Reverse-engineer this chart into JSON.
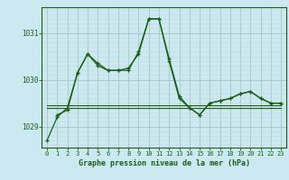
{
  "title": "Graphe pression niveau de la mer (hPa)",
  "background_color": "#cce8f0",
  "grid_color_major": "#aacccc",
  "grid_color_minor": "#c5dde0",
  "line_color": "#1a5e1a",
  "xlim": [
    -0.5,
    23.5
  ],
  "ylim": [
    1028.55,
    1031.55
  ],
  "yticks": [
    1029,
    1030,
    1031
  ],
  "xticks": [
    0,
    1,
    2,
    3,
    4,
    5,
    6,
    7,
    8,
    9,
    10,
    11,
    12,
    13,
    14,
    15,
    16,
    17,
    18,
    19,
    20,
    21,
    22,
    23
  ],
  "series": [
    {
      "x": [
        0,
        1,
        2,
        3,
        4,
        5,
        6,
        7,
        8,
        9,
        10,
        11,
        12,
        13,
        14,
        15,
        16,
        17,
        18,
        19,
        20,
        21,
        22,
        23
      ],
      "y": [
        1028.7,
        1029.2,
        1029.4,
        1030.15,
        1030.55,
        1030.35,
        1030.2,
        1030.2,
        1030.2,
        1030.6,
        1031.3,
        1031.3,
        1030.45,
        1029.65,
        1029.4,
        1029.25,
        1029.5,
        1029.55,
        1029.6,
        1029.7,
        1029.75,
        1029.6,
        1029.5,
        1029.5
      ],
      "marker": "+"
    },
    {
      "x": [
        0,
        23
      ],
      "y": [
        1029.4,
        1029.4
      ],
      "marker": null
    },
    {
      "x": [
        0,
        23
      ],
      "y": [
        1029.45,
        1029.45
      ],
      "marker": null
    },
    {
      "x": [
        1,
        2,
        3,
        4,
        5,
        6,
        7,
        8,
        9,
        10,
        11,
        12,
        13,
        14,
        15,
        16,
        17,
        18,
        19,
        20,
        21,
        22,
        23
      ],
      "y": [
        1029.25,
        1029.35,
        1030.15,
        1030.55,
        1030.3,
        1030.2,
        1030.2,
        1030.25,
        1030.55,
        1031.3,
        1031.3,
        1030.4,
        1029.6,
        1029.4,
        1029.25,
        1029.5,
        1029.55,
        1029.6,
        1029.7,
        1029.75,
        1029.6,
        1029.5,
        1029.5
      ],
      "marker": "+"
    }
  ]
}
